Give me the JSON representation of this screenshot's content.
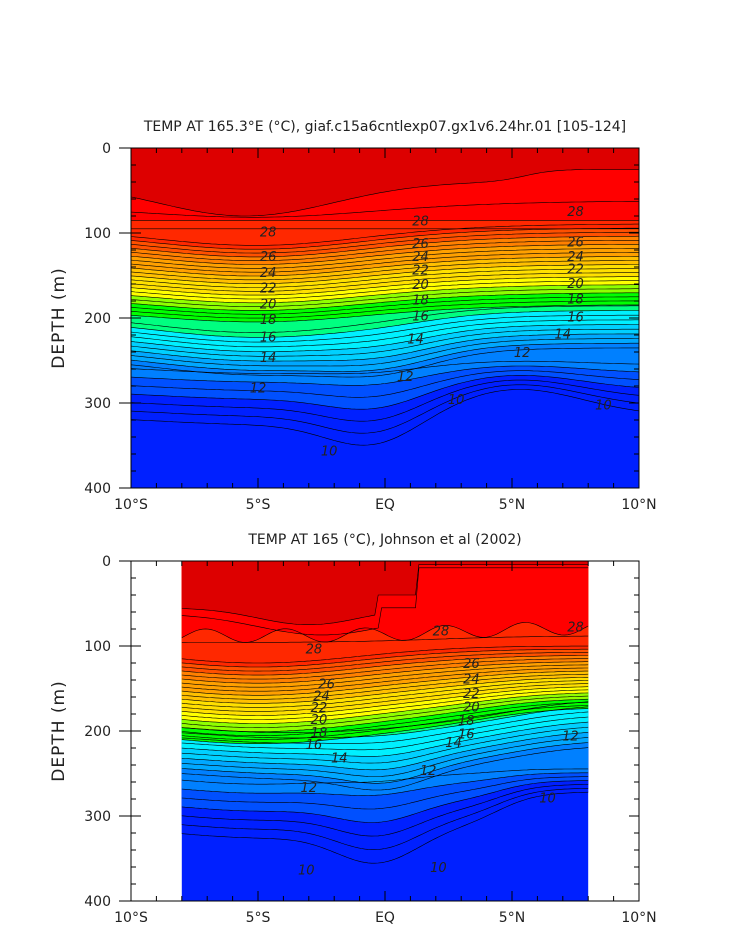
{
  "chart_data": [
    {
      "type": "heatmap",
      "title": "TEMP AT 165.3°E (°C), giaf.c15a6cntlexp07.gx1v6.24hr.01 [105-124]",
      "ylabel": "DEPTH (m)",
      "xlabel": "",
      "xlim": [
        -10,
        10
      ],
      "ylim": [
        400,
        0
      ],
      "x_ticks": [
        -10,
        -5,
        0,
        5,
        10
      ],
      "x_tick_labels": [
        "10°S",
        "5°S",
        "EQ",
        "5°N",
        "10°N"
      ],
      "y_ticks": [
        0,
        100,
        200,
        300,
        400
      ],
      "y_tick_labels": [
        "0",
        "100",
        "200",
        "300",
        "400"
      ],
      "data_x_range": [
        -10,
        10
      ],
      "contour_labels": [
        {
          "text": "28",
          "x": -4.6,
          "y": 98
        },
        {
          "text": "28",
          "x": 1.4,
          "y": 85
        },
        {
          "text": "28",
          "x": 7.5,
          "y": 74
        },
        {
          "text": "26",
          "x": -4.6,
          "y": 127
        },
        {
          "text": "26",
          "x": 1.4,
          "y": 112
        },
        {
          "text": "26",
          "x": 7.5,
          "y": 110
        },
        {
          "text": "24",
          "x": -4.6,
          "y": 146
        },
        {
          "text": "24",
          "x": 1.4,
          "y": 127
        },
        {
          "text": "24",
          "x": 7.5,
          "y": 127
        },
        {
          "text": "22",
          "x": -4.6,
          "y": 164
        },
        {
          "text": "22",
          "x": 1.4,
          "y": 143
        },
        {
          "text": "22",
          "x": 7.5,
          "y": 142
        },
        {
          "text": "20",
          "x": -4.6,
          "y": 183
        },
        {
          "text": "20",
          "x": 1.4,
          "y": 160
        },
        {
          "text": "20",
          "x": 7.5,
          "y": 159
        },
        {
          "text": "18",
          "x": -4.6,
          "y": 201
        },
        {
          "text": "18",
          "x": 1.4,
          "y": 178
        },
        {
          "text": "18",
          "x": 7.5,
          "y": 177
        },
        {
          "text": "16",
          "x": -4.6,
          "y": 222
        },
        {
          "text": "16",
          "x": 1.4,
          "y": 197
        },
        {
          "text": "16",
          "x": 7.5,
          "y": 198
        },
        {
          "text": "14",
          "x": -4.6,
          "y": 246
        },
        {
          "text": "14",
          "x": 1.2,
          "y": 224
        },
        {
          "text": "14",
          "x": 7.0,
          "y": 218
        },
        {
          "text": "12",
          "x": -5.0,
          "y": 282
        },
        {
          "text": "12",
          "x": 0.8,
          "y": 268
        },
        {
          "text": "12",
          "x": 5.4,
          "y": 240
        },
        {
          "text": "10",
          "x": -2.2,
          "y": 356
        },
        {
          "text": "10",
          "x": 2.8,
          "y": 295
        },
        {
          "text": "10",
          "x": 8.6,
          "y": 302
        }
      ]
    },
    {
      "type": "heatmap",
      "title": "TEMP AT 165 (°C), Johnson et al (2002)",
      "ylabel": "DEPTH (m)",
      "xlabel": "",
      "xlim": [
        -10,
        10
      ],
      "ylim": [
        400,
        0
      ],
      "x_ticks": [
        -10,
        -5,
        0,
        5,
        10
      ],
      "x_tick_labels": [
        "10°S",
        "5°S",
        "EQ",
        "5°N",
        "10°N"
      ],
      "y_ticks": [
        0,
        100,
        200,
        300,
        400
      ],
      "y_tick_labels": [
        "0",
        "100",
        "200",
        "300",
        "400"
      ],
      "data_x_range": [
        -8,
        8
      ],
      "contour_labels": [
        {
          "text": "28",
          "x": -2.8,
          "y": 103
        },
        {
          "text": "28",
          "x": 2.2,
          "y": 82
        },
        {
          "text": "28",
          "x": 7.5,
          "y": 77
        },
        {
          "text": "26",
          "x": -2.3,
          "y": 144
        },
        {
          "text": "26",
          "x": 3.4,
          "y": 120
        },
        {
          "text": "24",
          "x": -2.5,
          "y": 158
        },
        {
          "text": "24",
          "x": 3.4,
          "y": 138
        },
        {
          "text": "22",
          "x": -2.6,
          "y": 172
        },
        {
          "text": "22",
          "x": 3.4,
          "y": 155
        },
        {
          "text": "20",
          "x": -2.6,
          "y": 186
        },
        {
          "text": "20",
          "x": 3.4,
          "y": 171
        },
        {
          "text": "18",
          "x": -2.6,
          "y": 201
        },
        {
          "text": "18",
          "x": 3.2,
          "y": 187
        },
        {
          "text": "16",
          "x": -2.8,
          "y": 215
        },
        {
          "text": "16",
          "x": 3.2,
          "y": 203
        },
        {
          "text": "14",
          "x": -1.8,
          "y": 231
        },
        {
          "text": "14",
          "x": 2.7,
          "y": 213
        },
        {
          "text": "12",
          "x": -3.0,
          "y": 266
        },
        {
          "text": "12",
          "x": 1.7,
          "y": 246
        },
        {
          "text": "12",
          "x": 7.3,
          "y": 205
        },
        {
          "text": "10",
          "x": -3.1,
          "y": 363
        },
        {
          "text": "10",
          "x": 2.1,
          "y": 360
        },
        {
          "text": "10",
          "x": 6.4,
          "y": 278
        }
      ]
    }
  ]
}
